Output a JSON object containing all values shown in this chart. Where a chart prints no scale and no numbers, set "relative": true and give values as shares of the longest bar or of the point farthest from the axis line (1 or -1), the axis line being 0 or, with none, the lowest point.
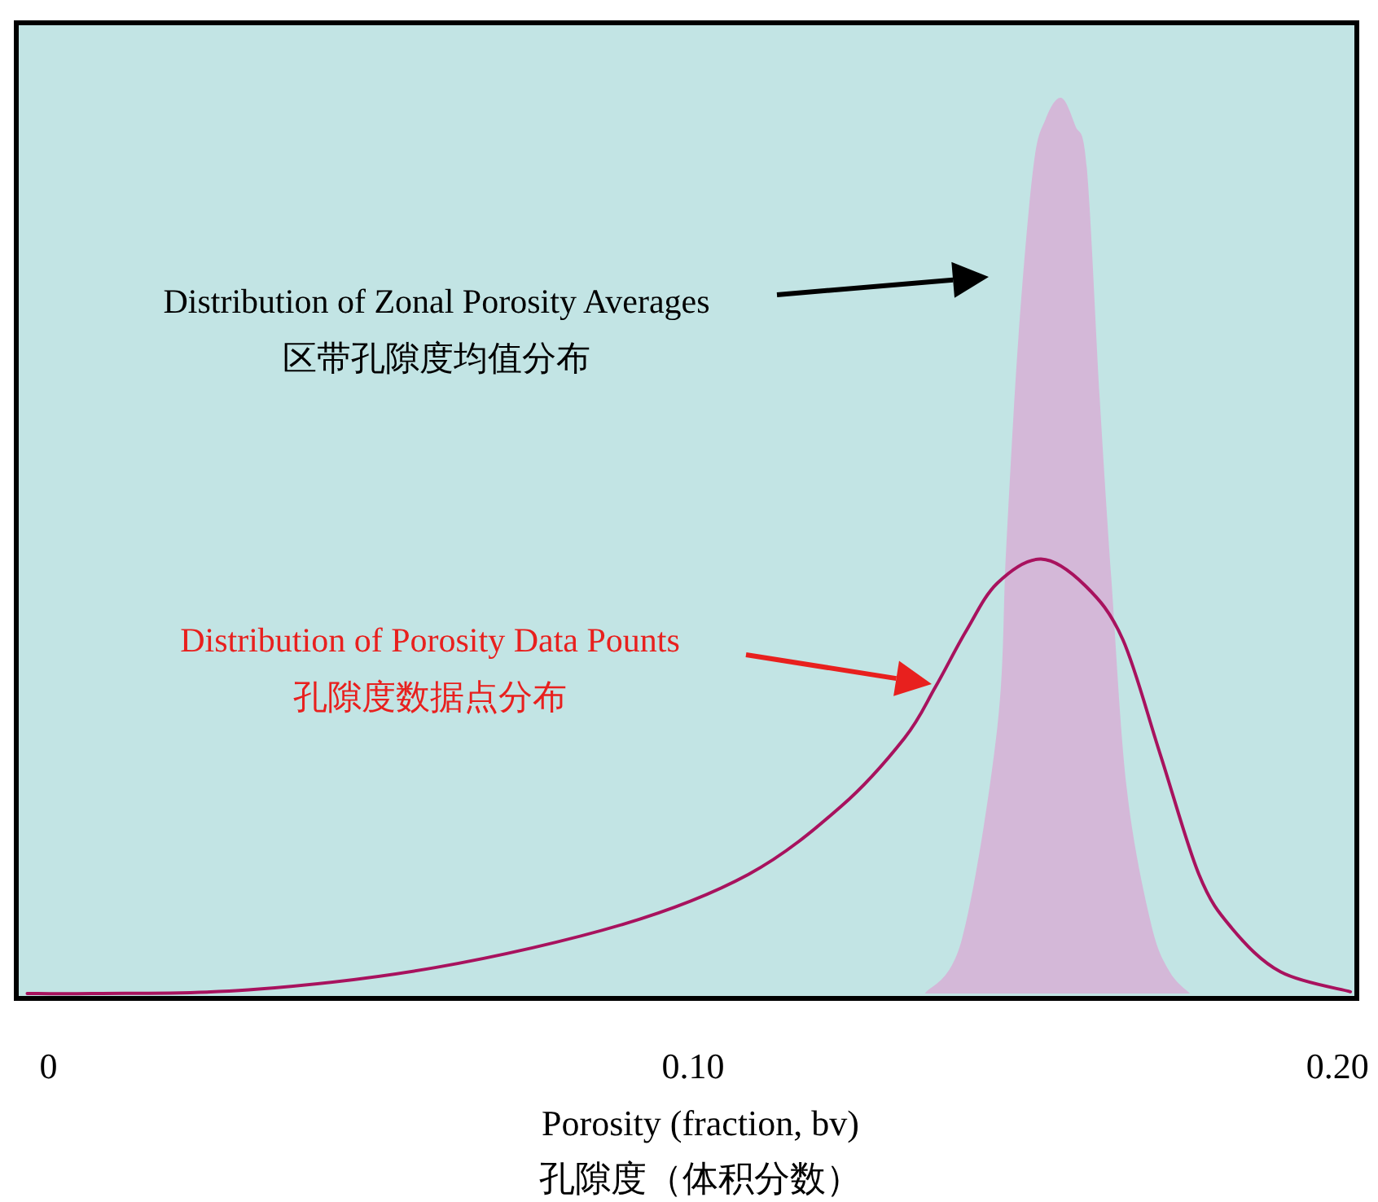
{
  "chart_data": {
    "type": "area",
    "xlabel": "Porosity (fraction, bv)",
    "xlim": [
      -0.005,
      0.203
    ],
    "xticks": [
      0,
      {
        "value": 0.1,
        "label": "0.10"
      },
      {
        "value": 0.2,
        "label": "0.20"
      }
    ],
    "relative": true,
    "tick_labels": "x",
    "series": [
      {
        "color": "#d4b8d8",
        "x": [
          0.136,
          0.1417,
          0.1472,
          0.1486,
          0.1505,
          0.1528,
          0.1547,
          0.1571,
          0.1593,
          0.1611,
          0.1631,
          0.1649,
          0.1673,
          0.171,
          0.1739,
          0.1771
        ],
        "values": [
          0,
          0.06,
          0.296,
          0.498,
          0.733,
          0.922,
          0.976,
          1.0,
          0.969,
          0.922,
          0.665,
          0.464,
          0.229,
          0.08,
          0.025,
          0
        ]
      },
      {
        "type": "line",
        "color": "#a8125e",
        "x": [
          -0.0033,
          0.0068,
          0.031,
          0.06,
          0.089,
          0.1086,
          0.123,
          0.1328,
          0.1376,
          0.1424,
          0.1472,
          0.154,
          0.1609,
          0.1667,
          0.1725,
          0.1785,
          0.1836,
          0.1912,
          0.202
        ],
        "values": [
          0,
          0,
          0.004,
          0.029,
          0.077,
          0.133,
          0.209,
          0.285,
          0.342,
          0.405,
          0.458,
          0.485,
          0.455,
          0.395,
          0.267,
          0.133,
          0.073,
          0.024,
          0.002
        ]
      }
    ],
    "annotations": [
      "Distribution of Zonal Porosity Averages",
      "区带孔隙度均值分布",
      "Distribution of Porosity Data Pounts",
      "孔隙度数据点分布",
      "孔隙度（体积分数）"
    ]
  }
}
